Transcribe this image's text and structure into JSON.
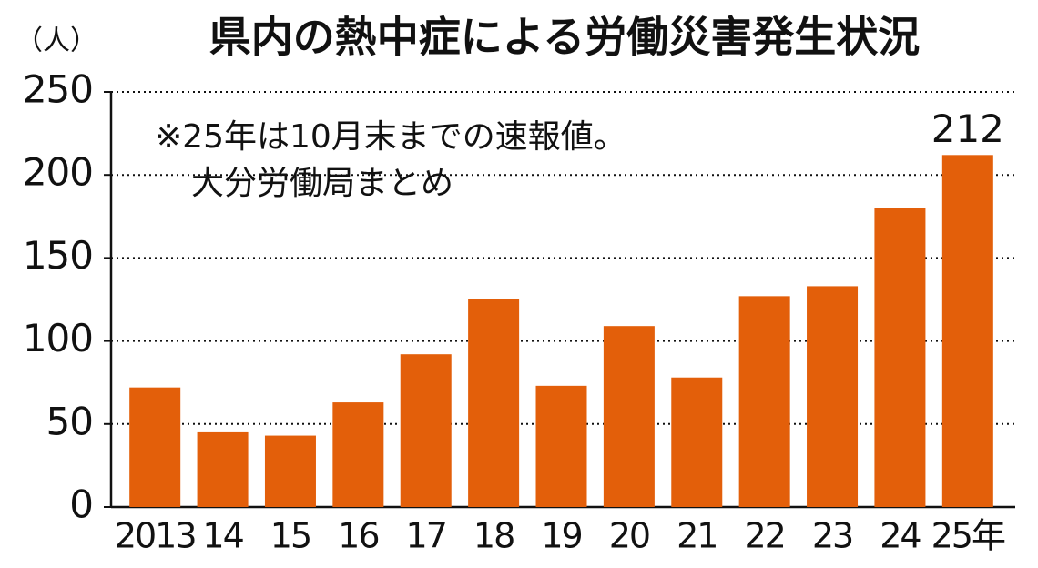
{
  "chart_data": {
    "type": "bar",
    "title": "県内の熱中症による労働災害発生状況",
    "y_label": "（人）",
    "annotations": [
      "※25年は10月末までの速報値。",
      "大分労働局まとめ"
    ],
    "categories": [
      "2013",
      "14",
      "15",
      "16",
      "17",
      "18",
      "19",
      "20",
      "21",
      "22",
      "23",
      "24",
      "25年"
    ],
    "values": [
      72,
      45,
      43,
      63,
      92,
      125,
      73,
      109,
      78,
      127,
      133,
      180,
      212
    ],
    "color": "#e35f0a",
    "ylim": [
      0,
      250
    ],
    "yticks": [
      0,
      50,
      100,
      150,
      200,
      250
    ],
    "grid": true,
    "labeled_bars": [
      12
    ]
  }
}
